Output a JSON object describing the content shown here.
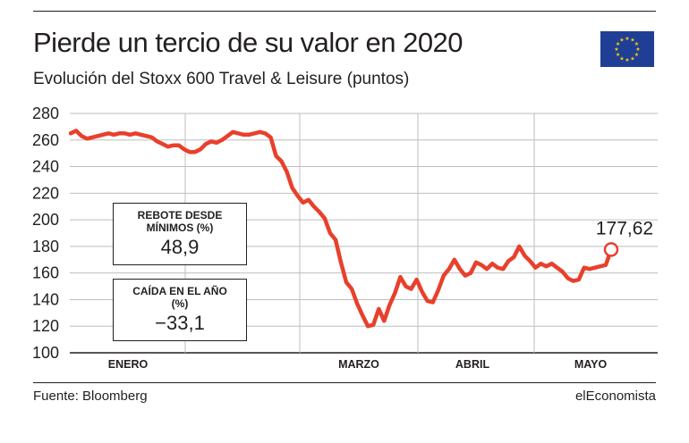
{
  "title": "Pierde un tercio de su valor en 2020",
  "subtitle": "Evolución del Stoxx 600 Travel & Leisure (puntos)",
  "flag": {
    "icon": "eu-flag-icon",
    "color_blue": "#1f3f97",
    "color_stars": "#ffcc00"
  },
  "colors": {
    "line": "#e8402c",
    "grid": "#bcbec0",
    "text": "#231f20"
  },
  "boxes": {
    "rebote": {
      "label": "REBOTE DESDE MÍNIMOS (%)",
      "value": "48,9"
    },
    "caida": {
      "label": "CAÍDA EN EL AÑO (%)",
      "value": "−33,1"
    }
  },
  "footer": {
    "source": "Fuente: Bloomberg",
    "brand": "elEconomista"
  },
  "chart_data": {
    "type": "line",
    "title": "Pierde un tercio de su valor en 2020",
    "ylabel": "",
    "xlabel": "",
    "ylim": [
      100,
      280
    ],
    "yticks": [
      280,
      260,
      240,
      220,
      200,
      180,
      160,
      140,
      120,
      100
    ],
    "grid": true,
    "months": [
      "ENERO",
      "MARZO",
      "ABRIL",
      "MAYO"
    ],
    "last_value_label": "177,62",
    "series": [
      {
        "values": [
          265,
          267,
          263,
          261,
          262,
          263,
          264,
          265,
          264,
          265,
          265,
          264,
          265,
          264,
          263,
          262,
          259,
          257,
          255,
          256,
          256,
          253,
          251,
          251,
          253,
          257,
          259,
          258,
          260,
          263,
          266,
          265,
          264,
          264,
          265,
          266,
          265,
          262,
          248,
          244,
          236,
          224,
          218,
          213,
          215,
          210,
          206,
          201,
          190,
          185,
          168,
          153,
          148,
          137,
          128,
          120,
          121,
          133,
          124,
          136,
          145,
          157,
          150,
          148,
          155,
          146,
          139,
          138,
          147,
          158,
          163,
          170,
          163,
          158,
          160,
          168,
          166,
          163,
          167,
          164,
          163,
          169,
          172,
          180,
          173,
          169,
          164,
          167,
          165,
          167,
          164,
          161,
          156,
          154,
          155,
          164,
          163,
          164,
          165,
          166,
          177.62
        ]
      }
    ]
  }
}
